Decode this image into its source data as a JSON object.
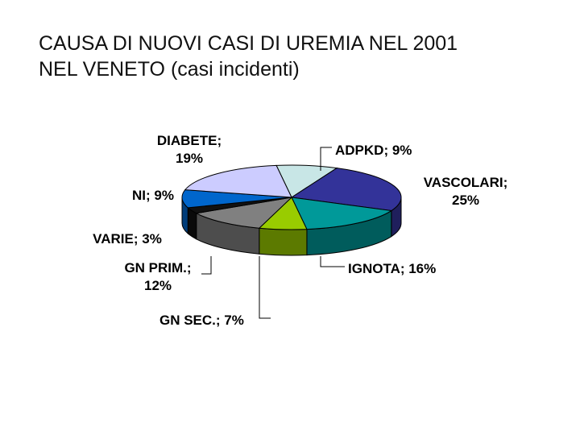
{
  "title_lines": [
    "CAUSA DI NUOVI CASI DI UREMIA NEL 2001",
    "NEL VENETO (casi incidenti)"
  ],
  "chart_data": {
    "type": "pie",
    "three_d": true,
    "title": "CAUSA DI NUOVI CASI DI UREMIA NEL 2001 NEL VENETO (casi incidenti)",
    "unit": "%",
    "legend": "none",
    "slices": [
      {
        "name": "ADPKD",
        "value": 9,
        "label_lines": [
          "ADPKD; 9%"
        ],
        "color": "#c8e6e6"
      },
      {
        "name": "VASCOLARI",
        "value": 25,
        "label_lines": [
          "VASCOLARI;",
          "25%"
        ],
        "color": "#333399"
      },
      {
        "name": "IGNOTA",
        "value": 16,
        "label_lines": [
          "IGNOTA; 16%"
        ],
        "color": "#009999"
      },
      {
        "name": "GN SEC.",
        "value": 7,
        "label_lines": [
          "GN SEC.; 7%"
        ],
        "color": "#99cc00"
      },
      {
        "name": "GN PRIM.",
        "value": 12,
        "label_lines": [
          "GN PRIM.;",
          "12%"
        ],
        "color": "#808080"
      },
      {
        "name": "VARIE",
        "value": 3,
        "label_lines": [
          "VARIE; 3%"
        ],
        "color": "#111111"
      },
      {
        "name": "NI",
        "value": 9,
        "label_lines": [
          "NI; 9%"
        ],
        "color": "#0066cc"
      },
      {
        "name": "DIABETE",
        "value": 19,
        "label_lines": [
          "DIABETE;",
          "19%"
        ],
        "color": "#ccccff"
      }
    ]
  }
}
